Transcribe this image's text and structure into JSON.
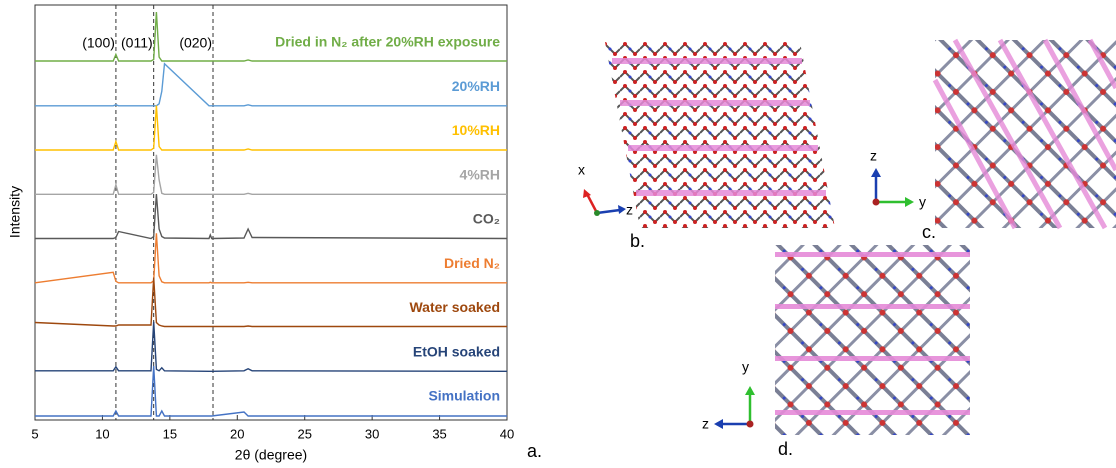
{
  "chart_data": {
    "type": "line",
    "x_label": "2θ (degree)",
    "y_label": "Intensity",
    "xlim": [
      5,
      40
    ],
    "xticks": [
      5,
      10,
      15,
      20,
      25,
      30,
      35,
      40
    ],
    "x": [
      5,
      10.8,
      11.0,
      11.2,
      13.6,
      13.8,
      14.0,
      14.2,
      14.4,
      14.6,
      17.9,
      18.0,
      18.1,
      20.5,
      20.8,
      21.1,
      40
    ],
    "reference_lines": [
      {
        "value": 11.0,
        "label": "(100)"
      },
      {
        "value": 13.8,
        "label": "(011)"
      },
      {
        "value": 18.2,
        "label": "(020)"
      }
    ],
    "series": [
      {
        "name": "Dried in N₂ after 20%RH exposure",
        "color": "#70ad47",
        "values": [
          2,
          2,
          15,
          2,
          2,
          5,
          100,
          10,
          2,
          2,
          2,
          2,
          2,
          2,
          4,
          2,
          2
        ]
      },
      {
        "name": "20%RH",
        "color": "#5b9bd5",
        "values": [
          1,
          1,
          3,
          1,
          1,
          1,
          1,
          5,
          30,
          85,
          1,
          1,
          1,
          1,
          3,
          1,
          1
        ]
      },
      {
        "name": "10%RH",
        "color": "#ffc000",
        "values": [
          1,
          1,
          18,
          1,
          1,
          5,
          90,
          8,
          1,
          1,
          1,
          1,
          1,
          1,
          3,
          1,
          1
        ]
      },
      {
        "name": "4%RH",
        "color": "#a5a5a5",
        "values": [
          1,
          1,
          20,
          1,
          1,
          5,
          80,
          30,
          3,
          1,
          1,
          1,
          1,
          1,
          3,
          1,
          1
        ]
      },
      {
        "name": "CO₂",
        "color": "#595959",
        "values": [
          1,
          1,
          3,
          15,
          1,
          5,
          90,
          20,
          5,
          2,
          1,
          8,
          1,
          2,
          20,
          3,
          1
        ]
      },
      {
        "name": "Dried N₂",
        "color": "#ed7d31",
        "values": [
          1,
          22,
          4,
          1,
          1,
          5,
          100,
          15,
          3,
          1,
          1,
          2,
          1,
          1,
          2,
          1,
          1
        ]
      },
      {
        "name": "Water soaked",
        "color": "#9e480e",
        "values": [
          10,
          3,
          3,
          5,
          5,
          100,
          10,
          5,
          3,
          2,
          2,
          2,
          2,
          2,
          3,
          2,
          2
        ]
      },
      {
        "name": "EtOH soaked",
        "color": "#264478",
        "values": [
          2,
          2,
          10,
          2,
          2,
          100,
          5,
          2,
          8,
          2,
          1,
          1,
          1,
          2,
          6,
          2,
          1
        ]
      },
      {
        "name": "Simulation",
        "color": "#4472c4",
        "values": [
          0,
          0,
          10,
          0,
          0,
          100,
          0,
          0,
          10,
          0,
          0,
          0,
          0,
          8,
          0,
          0,
          0
        ]
      }
    ]
  },
  "panels": {
    "a": "a.",
    "b": "b.",
    "c": "c.",
    "d": "d."
  },
  "axes": {
    "b": [
      "x",
      "z"
    ],
    "c": [
      "z",
      "y"
    ],
    "d": [
      "y",
      "z"
    ]
  }
}
